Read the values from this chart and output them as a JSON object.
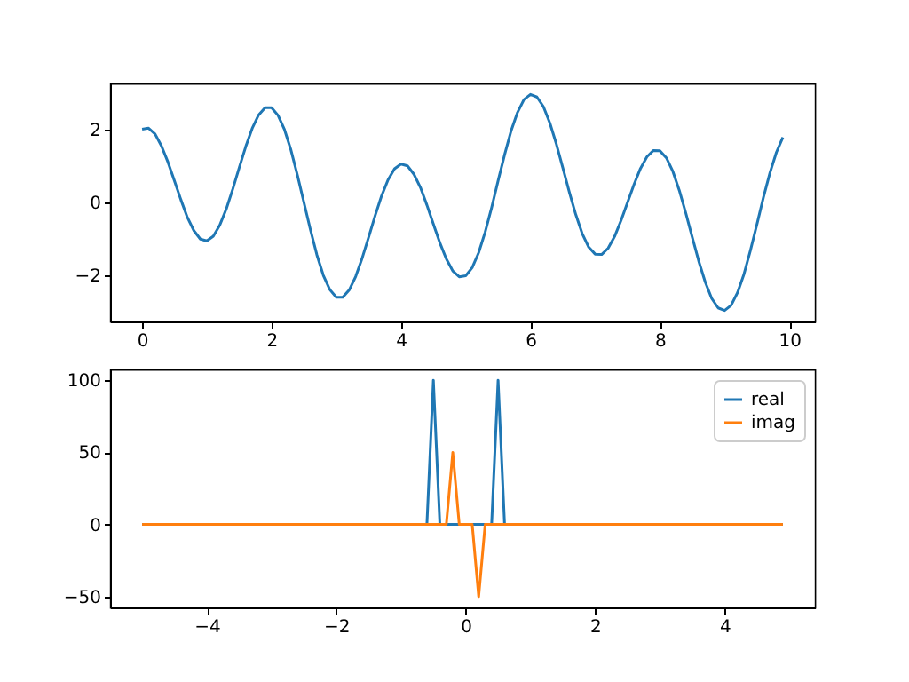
{
  "chart_data": [
    {
      "type": "line",
      "x": [
        0,
        0.1,
        0.2,
        0.3,
        0.4,
        0.5,
        0.6,
        0.7,
        0.8,
        0.9,
        1,
        1.1,
        1.2,
        1.3,
        1.4,
        1.5,
        1.6,
        1.7,
        1.8,
        1.9,
        2,
        2.1,
        2.2,
        2.3,
        2.4,
        2.5,
        2.6,
        2.7,
        2.8,
        2.9,
        3,
        3.1,
        3.2,
        3.3,
        3.4,
        3.5,
        3.6,
        3.7,
        3.8,
        3.9,
        4,
        4.1,
        4.2,
        4.3,
        4.4,
        4.5,
        4.6,
        4.7,
        4.8,
        4.9,
        5,
        5.1,
        5.2,
        5.3,
        5.4,
        5.5,
        5.6,
        5.7,
        5.8,
        5.9,
        6,
        6.1,
        6.2,
        6.3,
        6.4,
        6.5,
        6.6,
        6.7,
        6.8,
        6.9,
        7,
        7.1,
        7.2,
        7.3,
        7.4,
        7.5,
        7.6,
        7.7,
        7.8,
        7.9,
        8,
        8.1,
        8.2,
        8.3,
        8.4,
        8.5,
        8.6,
        8.7,
        8.8,
        8.9,
        9,
        9.1,
        9.2,
        9.3,
        9.4,
        9.5,
        9.6,
        9.7,
        9.8,
        9.9
      ],
      "series": [
        {
          "color": "#1f77b4",
          "values": [
            2,
            2.03,
            1.87,
            1.54,
            1.1,
            0.59,
            0.07,
            -0.41,
            -0.77,
            -1.0,
            -1.05,
            -0.92,
            -0.62,
            -0.18,
            0.36,
            0.95,
            1.52,
            2.02,
            2.39,
            2.59,
            2.59,
            2.38,
            1.99,
            1.43,
            0.74,
            0,
            -0.74,
            -1.43,
            -1.99,
            -2.38,
            -2.59,
            -2.59,
            -2.39,
            -2.02,
            -1.52,
            -0.95,
            -0.36,
            0.18,
            0.62,
            0.92,
            1.05,
            1.0,
            0.77,
            0.41,
            -0.07,
            -0.59,
            -1.1,
            -1.54,
            -1.87,
            -2.03,
            -2,
            -1.78,
            -1.37,
            -0.81,
            -0.14,
            0.59,
            1.3,
            1.95,
            2.46,
            2.81,
            2.95,
            2.88,
            2.62,
            2.17,
            1.6,
            0.95,
            0.29,
            -0.33,
            -0.85,
            -1.22,
            -1.41,
            -1.42,
            -1.25,
            -0.93,
            -0.49,
            0,
            0.49,
            0.93,
            1.25,
            1.42,
            1.41,
            1.22,
            0.85,
            0.33,
            -0.29,
            -0.95,
            -1.6,
            -2.17,
            -2.62,
            -2.88,
            -2.95,
            -2.81,
            -2.46,
            -1.95,
            -1.3,
            -0.59,
            0.14,
            0.81,
            1.37,
            1.78
          ]
        }
      ],
      "xlim": [
        -0.495,
        10.395
      ],
      "ylim": [
        -3.25,
        3.25
      ],
      "xticks": [
        0,
        2,
        4,
        6,
        8,
        10
      ],
      "yticks": [
        -2,
        0,
        2
      ],
      "grid": false,
      "line_style": "solid"
    },
    {
      "type": "line",
      "series": [
        {
          "name": "real",
          "color": "#1f77b4",
          "x": [
            -5,
            -0.6,
            -0.5,
            -0.4,
            0.4,
            0.5,
            0.6,
            4.9
          ],
          "values": [
            0,
            0,
            100,
            0,
            0,
            100,
            0,
            0
          ]
        },
        {
          "name": "imag",
          "color": "#ff7f0e",
          "x": [
            -5,
            -0.3,
            -0.2,
            -0.1,
            0.1,
            0.2,
            0.3,
            4.9
          ],
          "values": [
            0,
            0,
            50,
            0,
            0,
            -50,
            0,
            0
          ]
        }
      ],
      "xlim": [
        -5.495,
        5.395
      ],
      "ylim": [
        -57.5,
        107.5
      ],
      "xticks": [
        -4,
        -2,
        0,
        2,
        4
      ],
      "yticks": [
        -50,
        0,
        50,
        100
      ],
      "grid": false,
      "legend": "top right",
      "line_style": "solid"
    }
  ]
}
